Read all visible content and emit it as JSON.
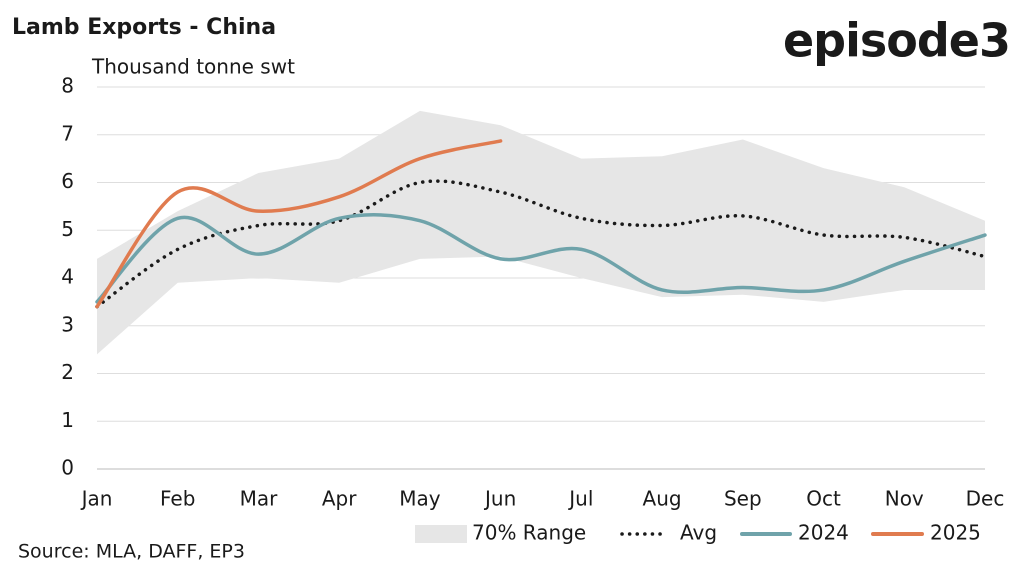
{
  "chart_data": {
    "type": "line",
    "title": "Lamb Exports - China",
    "logo": "episode3",
    "y_label": "Thousand tonne swt",
    "source": "Source: MLA, DAFF, EP3",
    "categories": [
      "Jan",
      "Feb",
      "Mar",
      "Apr",
      "May",
      "Jun",
      "Jul",
      "Aug",
      "Sep",
      "Oct",
      "Nov",
      "Dec"
    ],
    "ylim": [
      0,
      8
    ],
    "yticks": [
      0,
      1,
      2,
      3,
      4,
      5,
      6,
      7,
      8
    ],
    "grid": true,
    "legend": "bottom",
    "series": [
      {
        "name": "70% Range",
        "kind": "range",
        "color": "#e6e6e6",
        "values": [
          4.4,
          5.4,
          6.2,
          6.5,
          7.5,
          7.2,
          6.5,
          6.55,
          6.9,
          6.3,
          5.9,
          5.2
        ],
        "lower": [
          2.4,
          3.9,
          4.0,
          3.9,
          4.4,
          4.45,
          4.0,
          3.6,
          3.65,
          3.5,
          3.75,
          3.75
        ]
      },
      {
        "name": "Avg",
        "kind": "dotted",
        "color": "#1a1a1a",
        "values": [
          3.4,
          4.6,
          5.1,
          5.2,
          6.0,
          5.8,
          5.25,
          5.1,
          5.3,
          4.9,
          4.85,
          4.45
        ]
      },
      {
        "name": "2024",
        "kind": "line",
        "color": "#6fa3aa",
        "values": [
          3.5,
          5.25,
          4.5,
          5.25,
          5.2,
          4.4,
          4.6,
          3.75,
          3.8,
          3.75,
          4.35,
          4.9
        ]
      },
      {
        "name": "2025",
        "kind": "line",
        "color": "#e07b4f",
        "values": [
          3.4,
          5.8,
          5.4,
          5.7,
          6.5,
          6.87,
          null,
          null,
          null,
          null,
          null,
          null
        ]
      }
    ]
  }
}
